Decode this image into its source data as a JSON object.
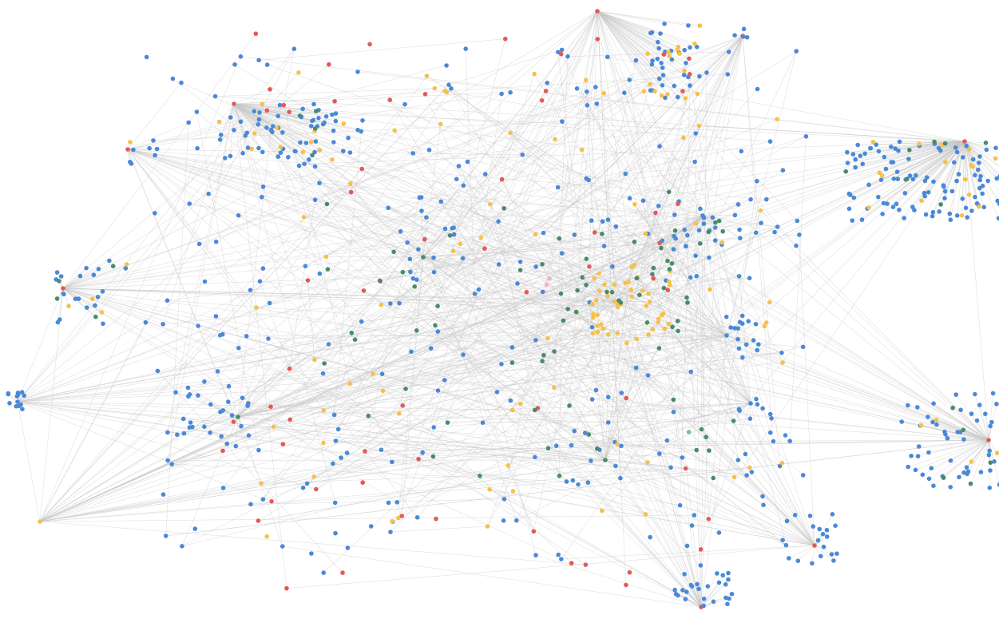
{
  "graph": {
    "colors": {
      "blue": "#4a89d8",
      "red": "#e5585a",
      "yellow": "#f7c04a",
      "green": "#4a8a6a",
      "pink": "#f0b0c4",
      "lightgreen": "#7cc08a"
    },
    "edge_color": "#c8c8c8"
  }
}
